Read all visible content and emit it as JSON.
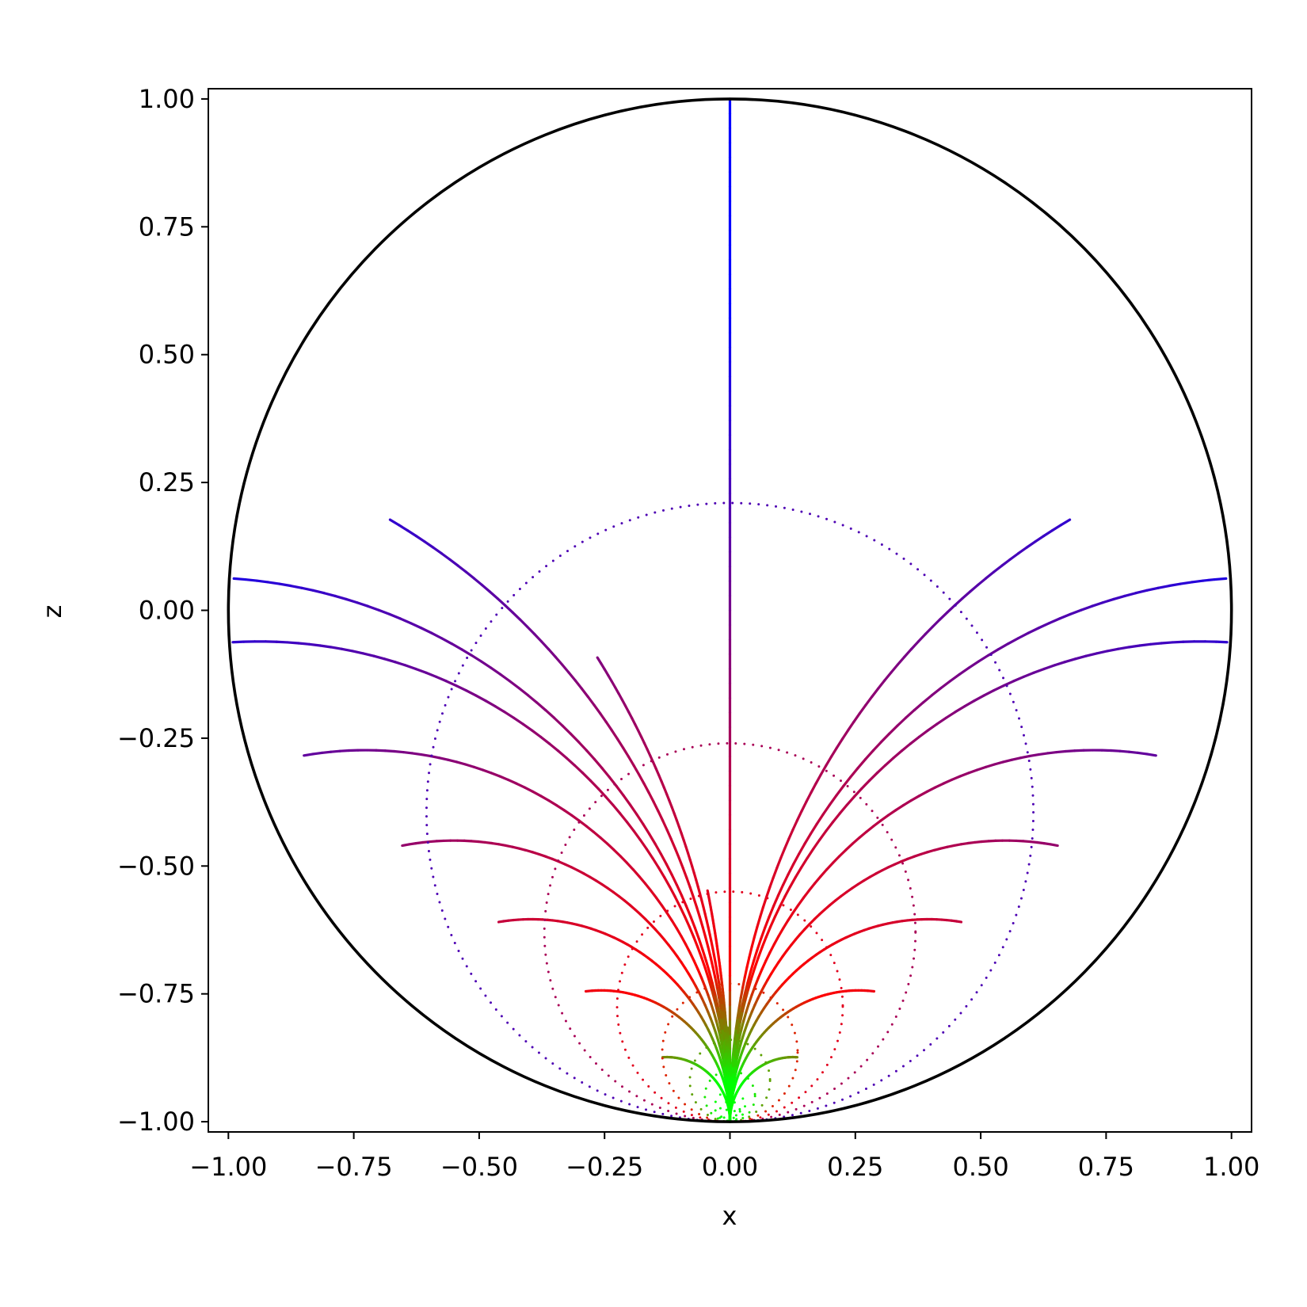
{
  "chart_data": {
    "type": "line",
    "title": "",
    "xlabel": "x",
    "ylabel": "z",
    "xlim": [
      -1.04,
      1.04
    ],
    "ylim": [
      -1.02,
      1.02
    ],
    "xticks": [
      "−1.00",
      "−0.75",
      "−0.50",
      "−0.25",
      "0.00",
      "0.25",
      "0.50",
      "0.75",
      "1.00"
    ],
    "xtick_values": [
      -1.0,
      -0.75,
      -0.5,
      -0.25,
      0.0,
      0.25,
      0.5,
      0.75,
      1.0
    ],
    "yticks": [
      "−1.00",
      "−0.75",
      "−0.50",
      "−0.25",
      "0.00",
      "0.25",
      "0.50",
      "0.75",
      "1.00"
    ],
    "ytick_values": [
      -1.0,
      -0.75,
      -0.5,
      -0.25,
      0.0,
      0.25,
      0.5,
      0.75,
      1.0
    ],
    "grid": false,
    "legend": "none",
    "boundary": {
      "shape": "unit circle",
      "center": [
        0,
        0
      ],
      "radius": 1.0,
      "color": "#000000"
    },
    "radial_lines": {
      "count": 21,
      "end_angles_deg": [
        -17.4,
        -3.6,
        3.6,
        18.0,
        32.4,
        46.8,
        61.2,
        75.6,
        90.0,
        104.4,
        118.8,
        133.2,
        147.6,
        162.0,
        176.4,
        183.6,
        197.4,
        208.8,
        223.2,
        237.6,
        252.0
      ],
      "color_at_rim": "#0000ff",
      "color_mid": "#ff0000",
      "color_at_bottom": "#00ff00"
    },
    "dotted_circles": {
      "count": 10,
      "bottom_point": [
        0,
        -1.0
      ],
      "top_z": [
        0.21,
        -0.26,
        -0.55,
        -0.73,
        -0.84,
        -0.9,
        -0.94,
        -0.96,
        -0.975,
        -0.985
      ],
      "style": "dotted"
    }
  }
}
